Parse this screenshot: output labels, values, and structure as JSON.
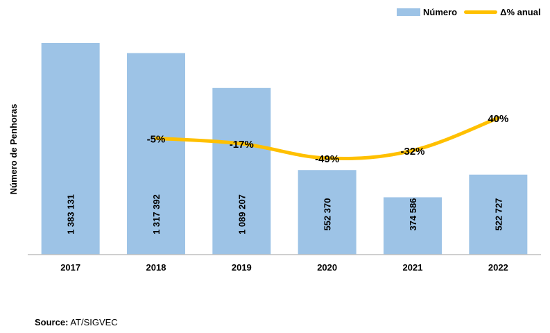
{
  "chart_data": {
    "type": "bar",
    "categories": [
      "2017",
      "2018",
      "2019",
      "2020",
      "2021",
      "2022"
    ],
    "series": [
      {
        "name": "Número",
        "type": "bar",
        "values": [
          1383131,
          1317392,
          1089207,
          552370,
          374586,
          522727
        ],
        "labels": [
          "1 383 131",
          "1 317 392",
          "1 089 207",
          "552 370",
          "374 586",
          "522 727"
        ],
        "color": "#9dc3e6"
      },
      {
        "name": "Δ% anual",
        "type": "line",
        "values": [
          null,
          -5,
          -17,
          -49,
          -32,
          40
        ],
        "labels": [
          "",
          "-5%",
          "-17%",
          "-49%",
          "-32%",
          "40%"
        ],
        "color": "#ffc000"
      }
    ],
    "ylabel": "Número de Penhoras",
    "ylim": [
      0,
      1383131
    ],
    "grid": false,
    "legend": "top-right"
  },
  "source": {
    "label": "Source:",
    "text": "AT/SIGVEC"
  }
}
